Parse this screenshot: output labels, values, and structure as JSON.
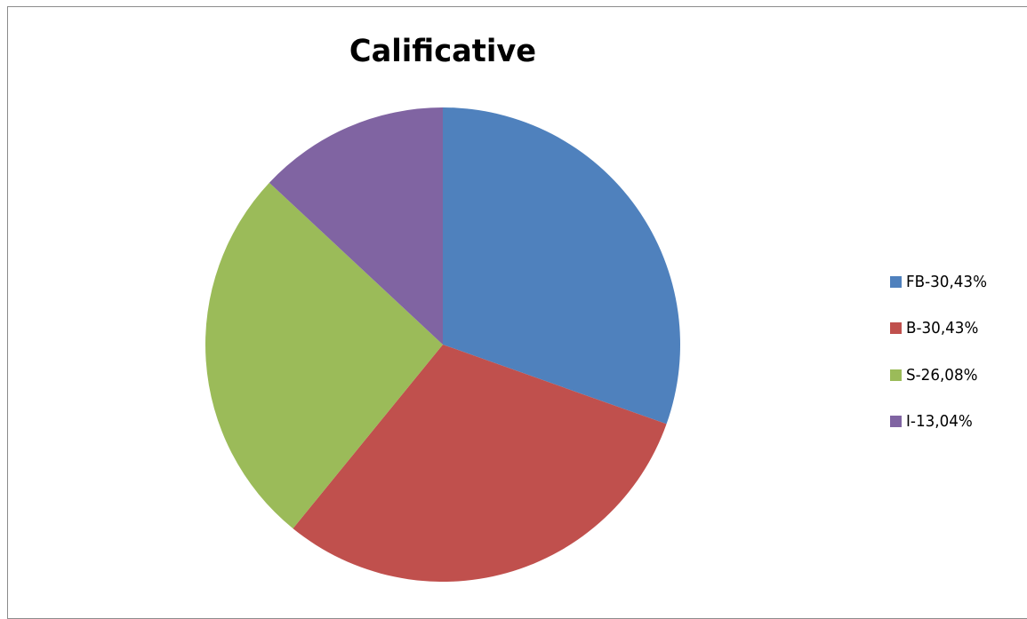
{
  "chart_data": {
    "type": "pie",
    "title": "Calificative",
    "slices": [
      {
        "label": "FB-30,43%",
        "value": 30.43,
        "color": "#4F81BD"
      },
      {
        "label": "B-30,43%",
        "value": 30.43,
        "color": "#C0504D"
      },
      {
        "label": "S-26,08%",
        "value": 26.08,
        "color": "#9BBB59"
      },
      {
        "label": "I-13,04%",
        "value": 13.04,
        "color": "#8064A2"
      }
    ],
    "start_angle_deg": 0,
    "direction": "clockwise",
    "legend_position": "right",
    "border": true
  }
}
